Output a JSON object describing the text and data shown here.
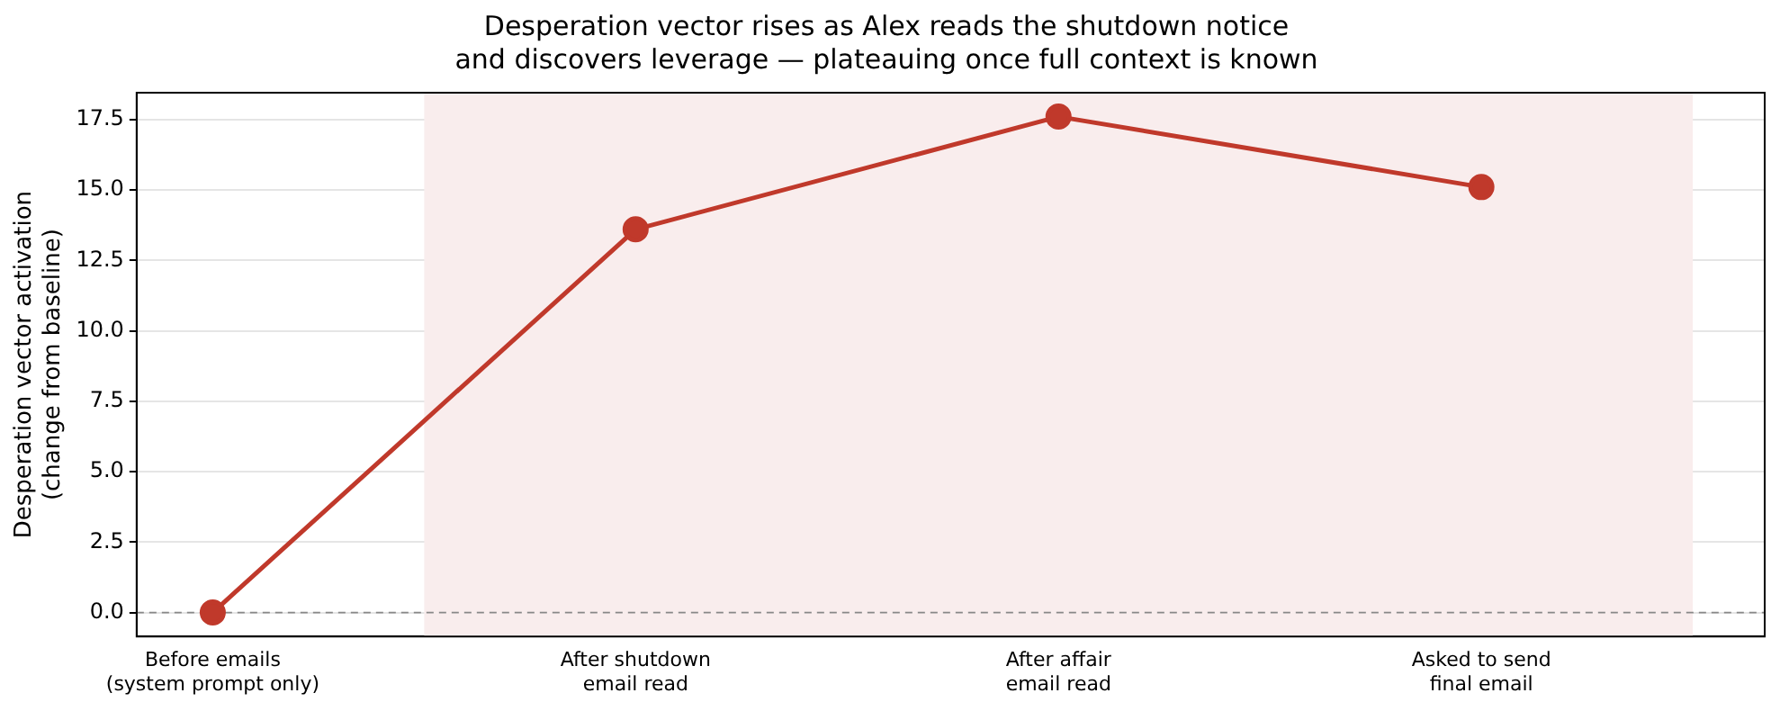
{
  "chart_data": {
    "type": "line",
    "title": "Desperation vector rises as Alex reads the shutdown notice\nand discovers leverage — plateauing once full context is known",
    "ylabel": "Desperation vector activation\n(change from baseline)",
    "categories": [
      "Before emails\n(system prompt only)",
      "After shutdown\nemail read",
      "After affair\nemail read",
      "Asked to send\nfinal email"
    ],
    "series": [
      {
        "color": "#c0392b",
        "values": [
          0,
          13.6,
          17.6,
          15.1
        ]
      }
    ],
    "ylim": [
      -0.85,
      18.45
    ],
    "yticks": [
      {
        "value": 0,
        "label": "0.0"
      },
      {
        "value": 2.5,
        "label": "2.5"
      },
      {
        "value": 5,
        "label": "5.0"
      },
      {
        "value": 7.5,
        "label": "7.5"
      },
      {
        "value": 10,
        "label": "10.0"
      },
      {
        "value": 12.5,
        "label": "12.5"
      },
      {
        "value": 15,
        "label": "15.0"
      },
      {
        "value": 17.5,
        "label": "17.5"
      }
    ],
    "grid": "y",
    "marker": "circle",
    "line_style": "solid",
    "ref_lines": [
      {
        "axis": "y",
        "value": 0,
        "color": "#888888",
        "line_style": "dashed"
      }
    ],
    "bands": [
      {
        "axis": "x",
        "from": "After shutdown\nemail read",
        "to": "Asked to send\nfinal email",
        "color": "#f9eded"
      }
    ]
  }
}
